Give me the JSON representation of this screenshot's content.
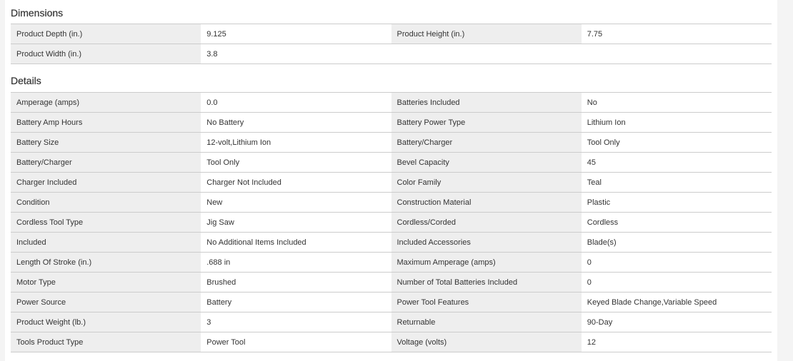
{
  "sections": [
    {
      "title": "Dimensions",
      "rows": [
        [
          "Product Depth (in.)",
          "9.125",
          "Product Height (in.)",
          "7.75"
        ],
        [
          "Product Width (in.)",
          "3.8",
          "",
          ""
        ]
      ]
    },
    {
      "title": "Details",
      "rows": [
        [
          "Amperage (amps)",
          "0.0",
          "Batteries Included",
          "No"
        ],
        [
          "Battery Amp Hours",
          "No Battery",
          "Battery Power Type",
          "Lithium Ion"
        ],
        [
          "Battery Size",
          "12-volt,Lithium Ion",
          "Battery/Charger",
          "Tool Only"
        ],
        [
          "Battery/Charger",
          "Tool Only",
          "Bevel Capacity",
          "45"
        ],
        [
          "Charger Included",
          "Charger Not Included",
          "Color Family",
          "Teal"
        ],
        [
          "Condition",
          "New",
          "Construction Material",
          "Plastic"
        ],
        [
          "Cordless Tool Type",
          "Jig Saw",
          "Cordless/Corded",
          "Cordless"
        ],
        [
          "Included",
          "No Additional Items Included",
          "Included Accessories",
          "Blade(s)"
        ],
        [
          "Length Of Stroke (in.)",
          ".688 in",
          "Maximum Amperage (amps)",
          "0"
        ],
        [
          "Motor Type",
          "Brushed",
          "Number of Total Batteries Included",
          "0"
        ],
        [
          "Power Source",
          "Battery",
          "Power Tool Features",
          "Keyed Blade Change,Variable Speed"
        ],
        [
          "Product Weight (lb.)",
          "3",
          "Returnable",
          "90-Day"
        ],
        [
          "Tools Product Type",
          "Power Tool",
          "Voltage (volts)",
          "12"
        ]
      ]
    }
  ]
}
